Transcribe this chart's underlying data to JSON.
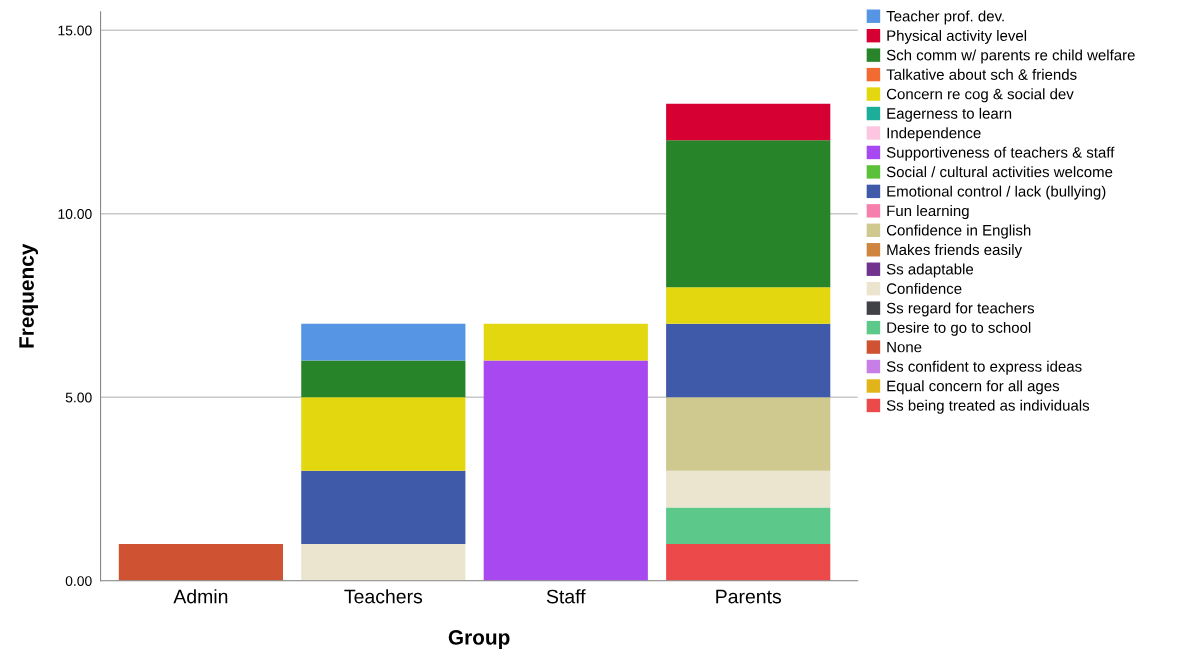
{
  "chart_data": {
    "type": "bar",
    "stacked": true,
    "xlabel": "Group",
    "ylabel": "Frequency",
    "categories": [
      "Admin",
      "Teachers",
      "Staff",
      "Parents"
    ],
    "ylim": [
      0,
      15.5
    ],
    "yticks": [
      {
        "value": 0,
        "label": "0.00"
      },
      {
        "value": 5,
        "label": "5.00"
      },
      {
        "value": 10,
        "label": "10.00"
      },
      {
        "value": 15,
        "label": "15.00"
      }
    ],
    "grid": "y",
    "legend": "right",
    "series": [
      {
        "name": "Ss being treated as individuals",
        "color": "#ec4a4a",
        "values": [
          0,
          0,
          0,
          1
        ]
      },
      {
        "name": "Equal concern for all ages",
        "color": "#e1b51a",
        "values": [
          0,
          0,
          0,
          0
        ]
      },
      {
        "name": "Ss confident to express ideas",
        "color": "#c77ee6",
        "values": [
          0,
          0,
          0,
          0
        ]
      },
      {
        "name": "None",
        "color": "#cf5332",
        "values": [
          1,
          0,
          0,
          0
        ]
      },
      {
        "name": "Desire to go to school",
        "color": "#5cc98a",
        "values": [
          0,
          0,
          0,
          1
        ]
      },
      {
        "name": "Ss regard for teachers",
        "color": "#404246",
        "values": [
          0,
          0,
          0,
          0
        ]
      },
      {
        "name": "Confidence",
        "color": "#ebe5d0",
        "values": [
          0,
          1,
          0,
          1
        ]
      },
      {
        "name": "Ss adaptable",
        "color": "#72338f",
        "values": [
          0,
          0,
          0,
          0
        ]
      },
      {
        "name": "Makes friends easily",
        "color": "#cf8440",
        "values": [
          0,
          0,
          0,
          0
        ]
      },
      {
        "name": "Confidence in English",
        "color": "#cfc88f",
        "values": [
          0,
          0,
          0,
          2
        ]
      },
      {
        "name": "Fun learning",
        "color": "#f77fad",
        "values": [
          0,
          0,
          0,
          0
        ]
      },
      {
        "name": "Emotional control / lack (bullying)",
        "color": "#3e5aa9",
        "values": [
          0,
          2,
          0,
          2
        ]
      },
      {
        "name": "Social / cultural activities welcome",
        "color": "#5cc13a",
        "values": [
          0,
          0,
          0,
          0
        ]
      },
      {
        "name": "Supportiveness of teachers & staff",
        "color": "#a848f0",
        "values": [
          0,
          0,
          6,
          0
        ]
      },
      {
        "name": "Independence",
        "color": "#fcc5e0",
        "values": [
          0,
          0,
          0,
          0
        ]
      },
      {
        "name": "Eagerness to learn",
        "color": "#1bae9a",
        "values": [
          0,
          0,
          0,
          0
        ]
      },
      {
        "name": "Concern re cog & social dev",
        "color": "#e3d70f",
        "values": [
          0,
          2,
          1,
          1
        ]
      },
      {
        "name": "Talkative about sch & friends",
        "color": "#f26b30",
        "values": [
          0,
          0,
          0,
          0
        ]
      },
      {
        "name": "Sch comm w/ parents re child welfare",
        "color": "#288428",
        "values": [
          0,
          1,
          0,
          4
        ]
      },
      {
        "name": "Physical activity level",
        "color": "#d60032",
        "values": [
          0,
          0,
          0,
          1
        ]
      },
      {
        "name": "Teacher prof. dev.",
        "color": "#5595e3",
        "values": [
          0,
          1,
          0,
          0
        ]
      }
    ]
  }
}
